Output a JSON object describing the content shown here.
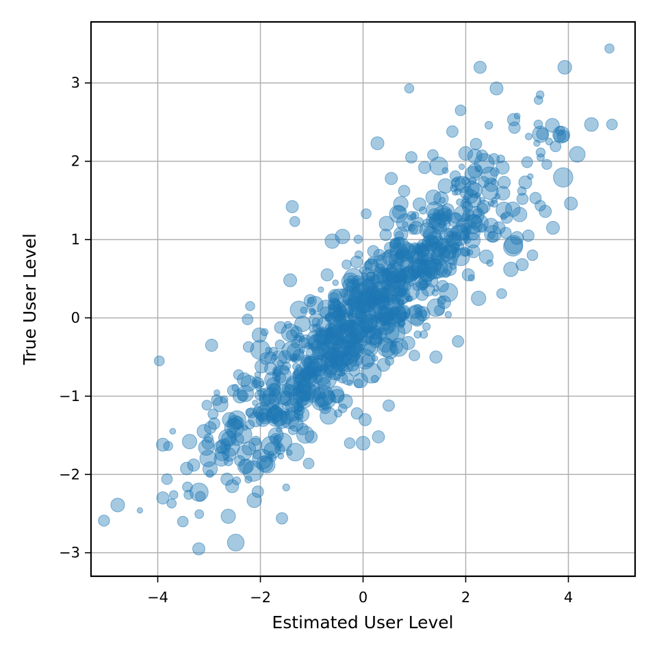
{
  "chart_data": {
    "type": "scatter",
    "title": "",
    "xlabel": "Estimated User Level",
    "ylabel": "True User Level",
    "xlim": [
      -5.3,
      5.3
    ],
    "ylim": [
      -3.3,
      3.78
    ],
    "xticks": [
      -4,
      -2,
      0,
      2,
      4
    ],
    "yticks": [
      -3,
      -2,
      -1,
      0,
      1,
      2,
      3
    ],
    "xtick_labels": [
      "−4",
      "−2",
      "0",
      "2",
      "4"
    ],
    "ytick_labels": [
      "−3",
      "−2",
      "−1",
      "0",
      "1",
      "2",
      "3"
    ],
    "grid": true,
    "marker_color": "#1f77b4",
    "marker_alpha": 0.4,
    "n_points": 1000,
    "approx_trend": {
      "slope": 0.6,
      "intercept": 0.0
    },
    "points_size_unit": "relative (0-1)",
    "points": [
      [
        -4.78,
        -2.39,
        0.55
      ],
      [
        -3.97,
        -0.55,
        0.3
      ],
      [
        -3.9,
        -1.62,
        0.5
      ],
      [
        -3.9,
        -2.3,
        0.45
      ],
      [
        -3.82,
        -2.06,
        0.35
      ],
      [
        -3.73,
        -2.37,
        0.25
      ],
      [
        -3.69,
        -2.26,
        0.2
      ],
      [
        -3.42,
        -2.16,
        0.3
      ],
      [
        -3.38,
        -1.58,
        0.6
      ],
      [
        -3.3,
        -1.88,
        0.45
      ],
      [
        -3.2,
        -2.95,
        0.45
      ],
      [
        -3.17,
        -2.28,
        0.3
      ],
      [
        -3.1,
        -1.45,
        0.55
      ],
      [
        -3.02,
        -1.6,
        0.45
      ],
      [
        -2.98,
        -1.93,
        0.6
      ],
      [
        -2.95,
        -0.35,
        0.45
      ],
      [
        -2.9,
        -1.35,
        0.4
      ],
      [
        -2.85,
        -1.05,
        0.35
      ],
      [
        -2.72,
        -1.64,
        0.6
      ],
      [
        -2.65,
        -2.06,
        0.45
      ],
      [
        -2.6,
        -1.3,
        0.6
      ],
      [
        -2.55,
        -2.15,
        0.5
      ],
      [
        -2.48,
        -2.87,
        0.75
      ],
      [
        -2.45,
        -1.55,
        0.5
      ],
      [
        -2.4,
        -1.0,
        0.55
      ],
      [
        -2.3,
        -1.9,
        0.6
      ],
      [
        -2.25,
        -0.02,
        0.35
      ],
      [
        -2.2,
        0.15,
        0.25
      ],
      [
        -2.12,
        -2.33,
        0.6
      ],
      [
        -2.05,
        -2.22,
        0.4
      ],
      [
        -2.02,
        -0.22,
        0.6
      ],
      [
        -1.98,
        -0.62,
        0.5
      ],
      [
        -1.95,
        -1.3,
        0.55
      ],
      [
        -1.9,
        -0.52,
        0.4
      ],
      [
        -1.87,
        -1.88,
        0.7
      ],
      [
        -1.8,
        -0.65,
        0.45
      ],
      [
        -1.75,
        -0.85,
        0.55
      ],
      [
        -1.7,
        -1.55,
        0.4
      ],
      [
        -1.62,
        -1.68,
        0.3
      ],
      [
        -1.58,
        -2.56,
        0.4
      ],
      [
        -1.52,
        -0.5,
        0.5
      ],
      [
        -1.48,
        -1.03,
        0.6
      ],
      [
        -1.42,
        0.48,
        0.5
      ],
      [
        -1.38,
        1.42,
        0.45
      ],
      [
        -1.33,
        1.23,
        0.3
      ],
      [
        -1.3,
        -0.18,
        0.4
      ],
      [
        -1.25,
        -0.75,
        0.45
      ],
      [
        -1.18,
        -1.42,
        0.4
      ],
      [
        -1.12,
        -0.3,
        0.5
      ],
      [
        -1.06,
        -1.86,
        0.35
      ],
      [
        -1.03,
        0.22,
        0.45
      ],
      [
        -0.96,
        -0.9,
        0.45
      ],
      [
        -0.92,
        -0.03,
        0.55
      ],
      [
        -0.86,
        -0.45,
        0.5
      ],
      [
        -0.8,
        -0.25,
        0.6
      ],
      [
        -0.74,
        -1.15,
        0.4
      ],
      [
        -0.7,
        0.55,
        0.45
      ],
      [
        -0.65,
        -0.68,
        0.5
      ],
      [
        -0.6,
        0.98,
        0.6
      ],
      [
        -0.55,
        0.28,
        0.5
      ],
      [
        -0.5,
        -1.0,
        0.55
      ],
      [
        -0.46,
        0.05,
        0.45
      ],
      [
        -0.4,
        1.04,
        0.6
      ],
      [
        -0.35,
        -0.5,
        0.5
      ],
      [
        -0.3,
        -0.78,
        0.4
      ],
      [
        -0.26,
        -1.6,
        0.35
      ],
      [
        -0.2,
        0.4,
        0.55
      ],
      [
        -0.15,
        -0.15,
        0.5
      ],
      [
        -0.12,
        -1.22,
        0.4
      ],
      [
        -0.05,
        -0.8,
        0.6
      ],
      [
        0.0,
        -1.6,
        0.55
      ],
      [
        0.0,
        0.15,
        0.6
      ],
      [
        0.04,
        -1.3,
        0.45
      ],
      [
        0.06,
        1.33,
        0.3
      ],
      [
        0.1,
        0.55,
        0.5
      ],
      [
        0.15,
        -0.4,
        0.55
      ],
      [
        0.2,
        0.85,
        0.4
      ],
      [
        0.24,
        -0.3,
        0.45
      ],
      [
        0.28,
        2.23,
        0.5
      ],
      [
        0.3,
        -1.52,
        0.45
      ],
      [
        0.36,
        0.22,
        0.6
      ],
      [
        0.4,
        -0.6,
        0.5
      ],
      [
        0.44,
        1.06,
        0.4
      ],
      [
        0.5,
        -1.12,
        0.4
      ],
      [
        0.55,
        1.78,
        0.45
      ],
      [
        0.6,
        0.45,
        0.55
      ],
      [
        0.65,
        -0.38,
        0.45
      ],
      [
        0.7,
        1.35,
        0.5
      ],
      [
        0.74,
        0.02,
        0.4
      ],
      [
        0.8,
        1.62,
        0.4
      ],
      [
        0.85,
        0.68,
        0.55
      ],
      [
        0.9,
        2.93,
        0.25
      ],
      [
        0.94,
        2.05,
        0.4
      ],
      [
        1.0,
        -0.48,
        0.35
      ],
      [
        1.04,
        0.78,
        0.55
      ],
      [
        1.1,
        1.45,
        0.5
      ],
      [
        1.15,
        0.3,
        0.45
      ],
      [
        1.2,
        1.92,
        0.45
      ],
      [
        1.25,
        0.55,
        0.6
      ],
      [
        1.3,
        1.08,
        0.55
      ],
      [
        1.36,
        2.08,
        0.35
      ],
      [
        1.42,
        -0.5,
        0.45
      ],
      [
        1.48,
        0.88,
        0.55
      ],
      [
        1.52,
        1.52,
        0.6
      ],
      [
        1.58,
        0.2,
        0.5
      ],
      [
        1.65,
        1.38,
        0.45
      ],
      [
        1.7,
        0.62,
        0.45
      ],
      [
        1.74,
        2.38,
        0.4
      ],
      [
        1.78,
        0.98,
        0.6
      ],
      [
        1.85,
        -0.3,
        0.4
      ],
      [
        1.9,
        2.65,
        0.35
      ],
      [
        1.95,
        1.18,
        0.55
      ],
      [
        2.0,
        2.1,
        0.55
      ],
      [
        2.05,
        0.55,
        0.45
      ],
      [
        2.1,
        1.55,
        0.55
      ],
      [
        2.15,
        0.85,
        0.5
      ],
      [
        2.2,
        2.22,
        0.4
      ],
      [
        2.25,
        0.25,
        0.6
      ],
      [
        2.28,
        3.2,
        0.45
      ],
      [
        2.35,
        1.42,
        0.5
      ],
      [
        2.4,
        0.78,
        0.55
      ],
      [
        2.45,
        2.46,
        0.15
      ],
      [
        2.5,
        1.7,
        0.55
      ],
      [
        2.55,
        2.03,
        0.35
      ],
      [
        2.6,
        2.93,
        0.5
      ],
      [
        2.65,
        1.15,
        0.45
      ],
      [
        2.7,
        0.31,
        0.3
      ],
      [
        2.75,
        1.73,
        0.45
      ],
      [
        2.8,
        1.28,
        0.4
      ],
      [
        2.88,
        0.62,
        0.6
      ],
      [
        2.95,
        2.43,
        0.4
      ],
      [
        3.0,
        1.02,
        0.5
      ],
      [
        3.05,
        1.32,
        0.6
      ],
      [
        3.1,
        0.68,
        0.45
      ],
      [
        3.16,
        1.73,
        0.5
      ],
      [
        3.22,
        1.05,
        0.4
      ],
      [
        3.3,
        0.8,
        0.35
      ],
      [
        3.36,
        1.53,
        0.4
      ],
      [
        3.45,
        2.85,
        0.15
      ],
      [
        3.55,
        1.36,
        0.45
      ],
      [
        3.58,
        1.96,
        0.3
      ],
      [
        3.7,
        1.15,
        0.5
      ],
      [
        3.75,
        2.19,
        0.35
      ],
      [
        3.9,
        2.32,
        0.45
      ],
      [
        3.93,
        3.2,
        0.55
      ],
      [
        4.05,
        1.46,
        0.5
      ],
      [
        4.45,
        2.47,
        0.55
      ],
      [
        4.8,
        3.44,
        0.25
      ],
      [
        4.85,
        2.47,
        0.35
      ]
    ]
  }
}
